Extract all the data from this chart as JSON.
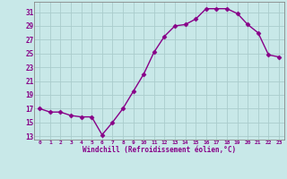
{
  "x": [
    0,
    1,
    2,
    3,
    4,
    5,
    6,
    7,
    8,
    9,
    10,
    11,
    12,
    13,
    14,
    15,
    16,
    17,
    18,
    19,
    20,
    21,
    22,
    23
  ],
  "y": [
    17,
    16.5,
    16.5,
    16,
    15.8,
    15.8,
    13.2,
    15,
    17,
    19.5,
    22,
    25.2,
    27.5,
    29,
    29.2,
    30,
    31.5,
    31.5,
    31.5,
    30.8,
    29.2,
    28,
    24.8,
    24.5
  ],
  "line_color": "#880088",
  "marker": "D",
  "marker_size": 2.5,
  "bg_color": "#c8e8e8",
  "grid_color": "#aacccc",
  "xlabel": "Windchill (Refroidissement éolien,°C)",
  "ylabel": "",
  "ytick_labels": [
    "13",
    "15",
    "17",
    "19",
    "21",
    "23",
    "25",
    "27",
    "29",
    "31"
  ],
  "ytick_values": [
    13,
    15,
    17,
    19,
    21,
    23,
    25,
    27,
    29,
    31
  ],
  "xtick_labels": [
    "0",
    "1",
    "2",
    "3",
    "4",
    "5",
    "6",
    "7",
    "8",
    "9",
    "10",
    "11",
    "12",
    "13",
    "14",
    "15",
    "16",
    "17",
    "18",
    "19",
    "20",
    "21",
    "22",
    "23"
  ],
  "xtick_values": [
    0,
    1,
    2,
    3,
    4,
    5,
    6,
    7,
    8,
    9,
    10,
    11,
    12,
    13,
    14,
    15,
    16,
    17,
    18,
    19,
    20,
    21,
    22,
    23
  ],
  "ylim": [
    12.5,
    32.5
  ],
  "xlim": [
    -0.5,
    23.5
  ],
  "tick_color": "#880088",
  "label_color": "#880088",
  "spine_color": "#888888",
  "linewidth": 1.0
}
